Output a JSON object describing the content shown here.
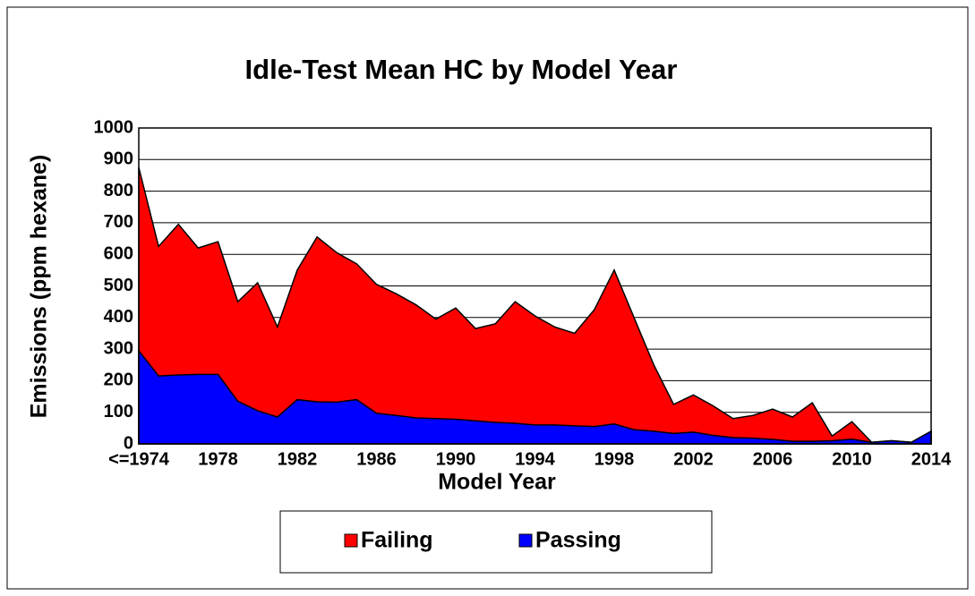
{
  "chart_data": {
    "type": "area",
    "title": "Idle-Test Mean HC by Model Year",
    "x_label": "Model Year",
    "y_label": "Emissions (ppm hexane)",
    "categories": [
      "<=1974",
      null,
      null,
      null,
      "1978",
      null,
      null,
      null,
      "1982",
      null,
      null,
      null,
      "1986",
      null,
      null,
      null,
      "1990",
      null,
      null,
      null,
      "1994",
      null,
      null,
      null,
      "1998",
      null,
      null,
      null,
      "2002",
      null,
      null,
      null,
      "2006",
      null,
      null,
      null,
      "2010",
      null,
      null,
      null,
      "2014"
    ],
    "series": [
      {
        "name": "Failing",
        "color": "#ff0000",
        "values": [
          875,
          625,
          695,
          620,
          640,
          450,
          510,
          370,
          550,
          655,
          605,
          570,
          505,
          475,
          440,
          395,
          430,
          365,
          380,
          450,
          405,
          370,
          350,
          425,
          550,
          400,
          250,
          125,
          155,
          120,
          80,
          90,
          110,
          85,
          130,
          25,
          70,
          5,
          10,
          5,
          40
        ]
      },
      {
        "name": "Passing",
        "color": "#0000ff",
        "values": [
          295,
          215,
          218,
          220,
          220,
          135,
          105,
          85,
          140,
          133,
          132,
          140,
          97,
          90,
          82,
          80,
          78,
          73,
          68,
          65,
          60,
          60,
          57,
          55,
          63,
          45,
          40,
          33,
          37,
          27,
          20,
          18,
          14,
          8,
          8,
          10,
          15,
          5,
          10,
          5,
          40
        ]
      }
    ],
    "ylim": [
      0,
      1000
    ],
    "yticks": [
      0,
      100,
      200,
      300,
      400,
      500,
      600,
      700,
      800,
      900,
      1000
    ],
    "grid": true,
    "legend": "bottom"
  }
}
